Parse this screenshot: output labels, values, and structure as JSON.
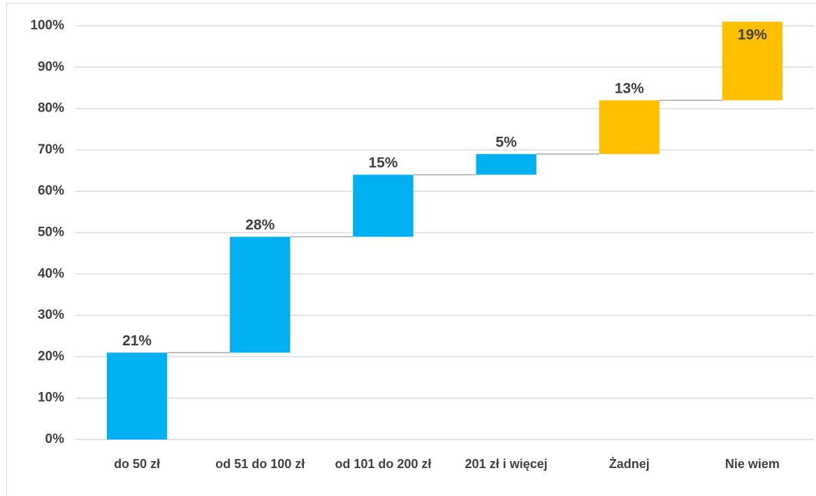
{
  "chart_data": {
    "type": "waterfall",
    "categories": [
      "do 50 zł",
      "od 51 do 100 zł",
      "od 101 do 200 zł",
      "201 zł i więcej",
      "Żadnej",
      "Nie wiem"
    ],
    "values": [
      21,
      28,
      15,
      5,
      13,
      19
    ],
    "value_labels": [
      "21%",
      "28%",
      "15%",
      "5%",
      "13%",
      "19%"
    ],
    "colors": [
      "#00b0f0",
      "#00b0f0",
      "#00b0f0",
      "#00b0f0",
      "#ffc000",
      "#ffc000"
    ],
    "ylim": [
      0,
      100
    ],
    "yticks": [
      {
        "value": 0,
        "label": "0%"
      },
      {
        "value": 10,
        "label": "10%"
      },
      {
        "value": 20,
        "label": "20%"
      },
      {
        "value": 30,
        "label": "30%"
      },
      {
        "value": 40,
        "label": "40%"
      },
      {
        "value": 50,
        "label": "50%"
      },
      {
        "value": 60,
        "label": "60%"
      },
      {
        "value": 70,
        "label": "70%"
      },
      {
        "value": 80,
        "label": "80%"
      },
      {
        "value": 90,
        "label": "90%"
      },
      {
        "value": 100,
        "label": "100%"
      }
    ],
    "grid": true
  }
}
